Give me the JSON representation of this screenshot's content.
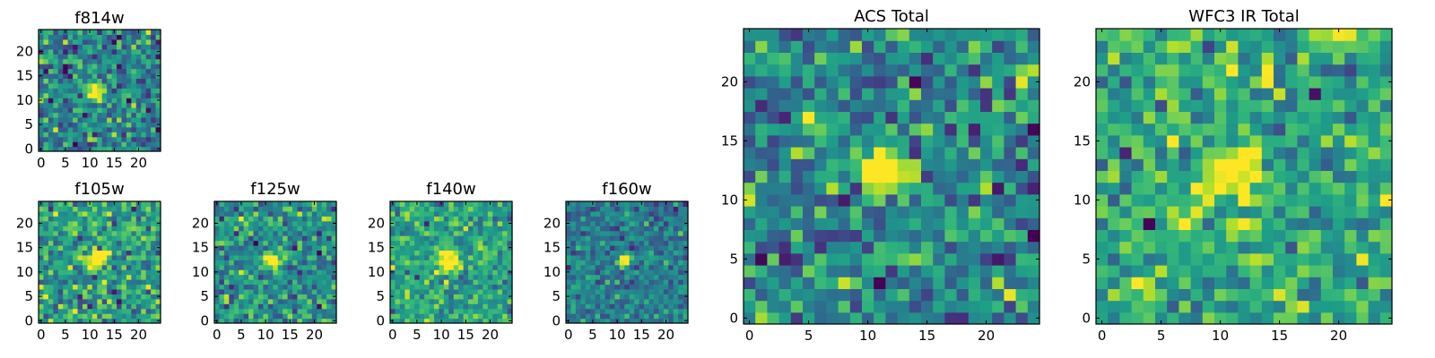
{
  "chart_data": [
    {
      "type": "heatmap",
      "title": "f814w",
      "colormap": "viridis",
      "grid": false,
      "size": [
        25,
        25
      ],
      "xlim": [
        -0.5,
        24.5
      ],
      "ylim": [
        -0.5,
        24.5
      ],
      "xticks": [
        0,
        5,
        10,
        15,
        20
      ],
      "yticks": [
        0,
        5,
        10,
        15,
        20
      ],
      "blobs": [
        {
          "x": 11,
          "y": 12,
          "radius": 1.8,
          "peak": 1.0
        }
      ],
      "background_level": 0.45,
      "noise": 0.18,
      "seed": 11
    },
    {
      "type": "heatmap",
      "title": "f105w",
      "colormap": "viridis",
      "grid": false,
      "size": [
        25,
        25
      ],
      "xlim": [
        -0.5,
        24.5
      ],
      "ylim": [
        -0.5,
        24.5
      ],
      "xticks": [
        0,
        5,
        10,
        15,
        20
      ],
      "yticks": [
        0,
        5,
        10,
        15,
        20
      ],
      "blobs": [
        {
          "x": 11.5,
          "y": 12.5,
          "radius": 2.0,
          "peak": 0.95
        }
      ],
      "background_level": 0.55,
      "noise": 0.17,
      "seed": 22
    },
    {
      "type": "heatmap",
      "title": "f125w",
      "colormap": "viridis",
      "grid": false,
      "size": [
        25,
        25
      ],
      "xlim": [
        -0.5,
        24.5
      ],
      "ylim": [
        -0.5,
        24.5
      ],
      "xticks": [
        0,
        5,
        10,
        15,
        20
      ],
      "yticks": [
        0,
        5,
        10,
        15,
        20
      ],
      "blobs": [
        {
          "x": 11.5,
          "y": 12.5,
          "radius": 1.8,
          "peak": 0.95
        }
      ],
      "background_level": 0.5,
      "noise": 0.16,
      "seed": 33
    },
    {
      "type": "heatmap",
      "title": "f140w",
      "colormap": "viridis",
      "grid": false,
      "size": [
        25,
        25
      ],
      "xlim": [
        -0.5,
        24.5
      ],
      "ylim": [
        -0.5,
        24.5
      ],
      "xticks": [
        0,
        5,
        10,
        15,
        20
      ],
      "yticks": [
        0,
        5,
        10,
        15,
        20
      ],
      "blobs": [
        {
          "x": 11.5,
          "y": 12.5,
          "radius": 2.2,
          "peak": 0.95
        }
      ],
      "background_level": 0.58,
      "noise": 0.15,
      "seed": 44
    },
    {
      "type": "heatmap",
      "title": "f160w",
      "colormap": "viridis",
      "grid": false,
      "size": [
        25,
        25
      ],
      "xlim": [
        -0.5,
        24.5
      ],
      "ylim": [
        -0.5,
        24.5
      ],
      "xticks": [
        0,
        5,
        10,
        15,
        20
      ],
      "yticks": [
        0,
        5,
        10,
        15,
        20
      ],
      "blobs": [
        {
          "x": 11.5,
          "y": 12.5,
          "radius": 1.2,
          "peak": 1.0
        }
      ],
      "background_level": 0.42,
      "noise": 0.12,
      "seed": 55
    },
    {
      "type": "heatmap",
      "title": "ACS Total",
      "colormap": "viridis",
      "grid": false,
      "size": [
        25,
        25
      ],
      "xlim": [
        -0.5,
        24.5
      ],
      "ylim": [
        -0.5,
        24.5
      ],
      "xticks": [
        0,
        5,
        10,
        15,
        20
      ],
      "yticks": [
        0,
        5,
        10,
        15,
        20
      ],
      "blobs": [
        {
          "x": 11.5,
          "y": 12.5,
          "radius": 2.0,
          "peak": 1.0
        }
      ],
      "background_level": 0.45,
      "noise": 0.18,
      "seed": 66
    },
    {
      "type": "heatmap",
      "title": "WFC3 IR Total",
      "colormap": "viridis",
      "grid": false,
      "size": [
        25,
        25
      ],
      "xlim": [
        -0.5,
        24.5
      ],
      "ylim": [
        -0.5,
        24.5
      ],
      "xticks": [
        0,
        5,
        10,
        15,
        20
      ],
      "yticks": [
        0,
        5,
        10,
        15,
        20
      ],
      "blobs": [
        {
          "x": 11.5,
          "y": 12.5,
          "radius": 2.0,
          "peak": 0.95
        }
      ],
      "background_level": 0.6,
      "noise": 0.17,
      "seed": 77
    }
  ]
}
